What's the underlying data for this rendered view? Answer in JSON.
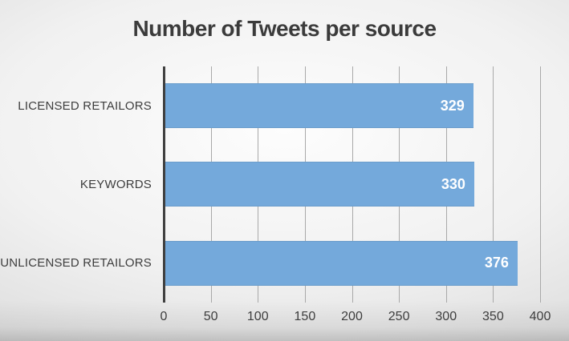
{
  "chart_data": {
    "type": "bar",
    "orientation": "horizontal",
    "title": "Number of Tweets per source",
    "categories": [
      "LICENSED RETAILORS",
      "KEYWORDS",
      "UNLICENSED RETAILORS"
    ],
    "values": [
      329,
      330,
      376
    ],
    "xlabel": "",
    "ylabel": "",
    "xlim": [
      0,
      400
    ],
    "xticks": [
      "0",
      "50",
      "100",
      "150",
      "200",
      "250",
      "300",
      "350",
      "400"
    ],
    "grid": true,
    "legend_position": "none",
    "colors": {
      "bar": "#74a9db",
      "value_label": "#ffffff",
      "text": "#3d3d3d",
      "axis_line": "#404040",
      "gridline": "#a9a9a9"
    }
  }
}
